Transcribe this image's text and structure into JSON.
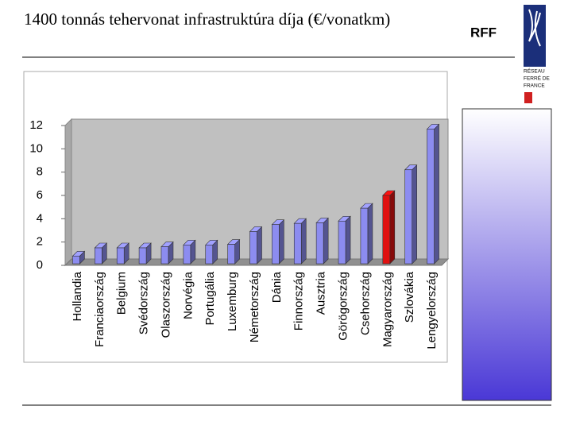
{
  "header": {
    "title": "1400 tonnás tehervonat infrastruktúra díja (€/vonatkm)",
    "brand": "RFF",
    "logo_lines": [
      "RÉSEAU",
      "FERRÉ DE",
      "FRANCE"
    ]
  },
  "chart_data": {
    "type": "bar3d",
    "categories": [
      "Hollandia",
      "Franciaország",
      "Belgium",
      "Svédország",
      "Olaszország",
      "Norvégia",
      "Portugália",
      "Luxemburg",
      "Németország",
      "Dánia",
      "Finnország",
      "Ausztria",
      "Görögország",
      "Csehország",
      "Magyarország",
      "Szlovákia",
      "Lengyelország"
    ],
    "values": [
      0.8,
      1.5,
      1.5,
      1.5,
      1.6,
      1.75,
      1.75,
      1.8,
      2.9,
      3.5,
      3.6,
      3.65,
      3.8,
      4.9,
      6.0,
      8.2,
      11.7
    ],
    "colors": [
      "#8c8cf0",
      "#8c8cf0",
      "#8c8cf0",
      "#8c8cf0",
      "#8c8cf0",
      "#8c8cf0",
      "#8c8cf0",
      "#8c8cf0",
      "#8c8cf0",
      "#8c8cf0",
      "#8c8cf0",
      "#8c8cf0",
      "#8c8cf0",
      "#8c8cf0",
      "#e01010",
      "#8c8cf0",
      "#8c8cf0"
    ],
    "ylim": [
      0,
      12
    ],
    "yticks": [
      0,
      2,
      4,
      6,
      8,
      10,
      12
    ],
    "grid": false
  }
}
